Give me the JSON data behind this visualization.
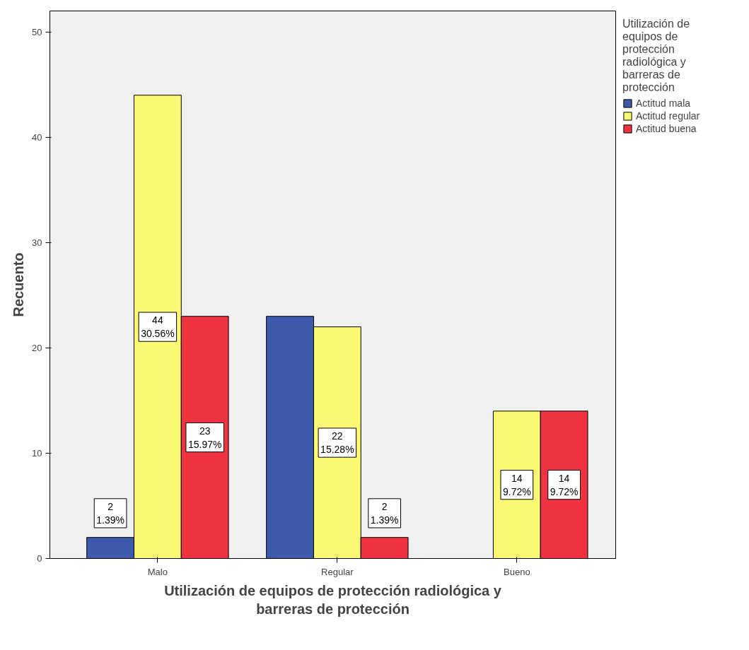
{
  "chart_data": {
    "type": "bar",
    "xlabel": "Utilización de equipos de protección radiológica y barreras de protección",
    "ylabel": "Recuento",
    "legend_title": "Utilización de equipos de protección radiológica y barreras de protección",
    "categories": [
      "Malo",
      "Regular",
      "Bueno"
    ],
    "series": [
      {
        "name": "Actitud mala",
        "color": "#3e58ac",
        "values": [
          2,
          23,
          0
        ],
        "value_labels": [
          "2\n1.39%",
          null,
          null
        ]
      },
      {
        "name": "Actitud regular",
        "color": "#fbf873",
        "values": [
          44,
          22,
          14
        ],
        "value_labels": [
          "44\n30.56%",
          "22\n15.28%",
          "14\n9.72%"
        ]
      },
      {
        "name": "Actitud buena",
        "color": "#ef3340",
        "values": [
          23,
          2,
          14
        ],
        "value_labels": [
          "23\n15.97%",
          "2\n1.39%",
          "14\n9.72%"
        ]
      }
    ],
    "ylim": [
      0,
      52
    ],
    "yticks": [
      0,
      10,
      20,
      30,
      40,
      50
    ],
    "grid": false,
    "legend": "right"
  }
}
